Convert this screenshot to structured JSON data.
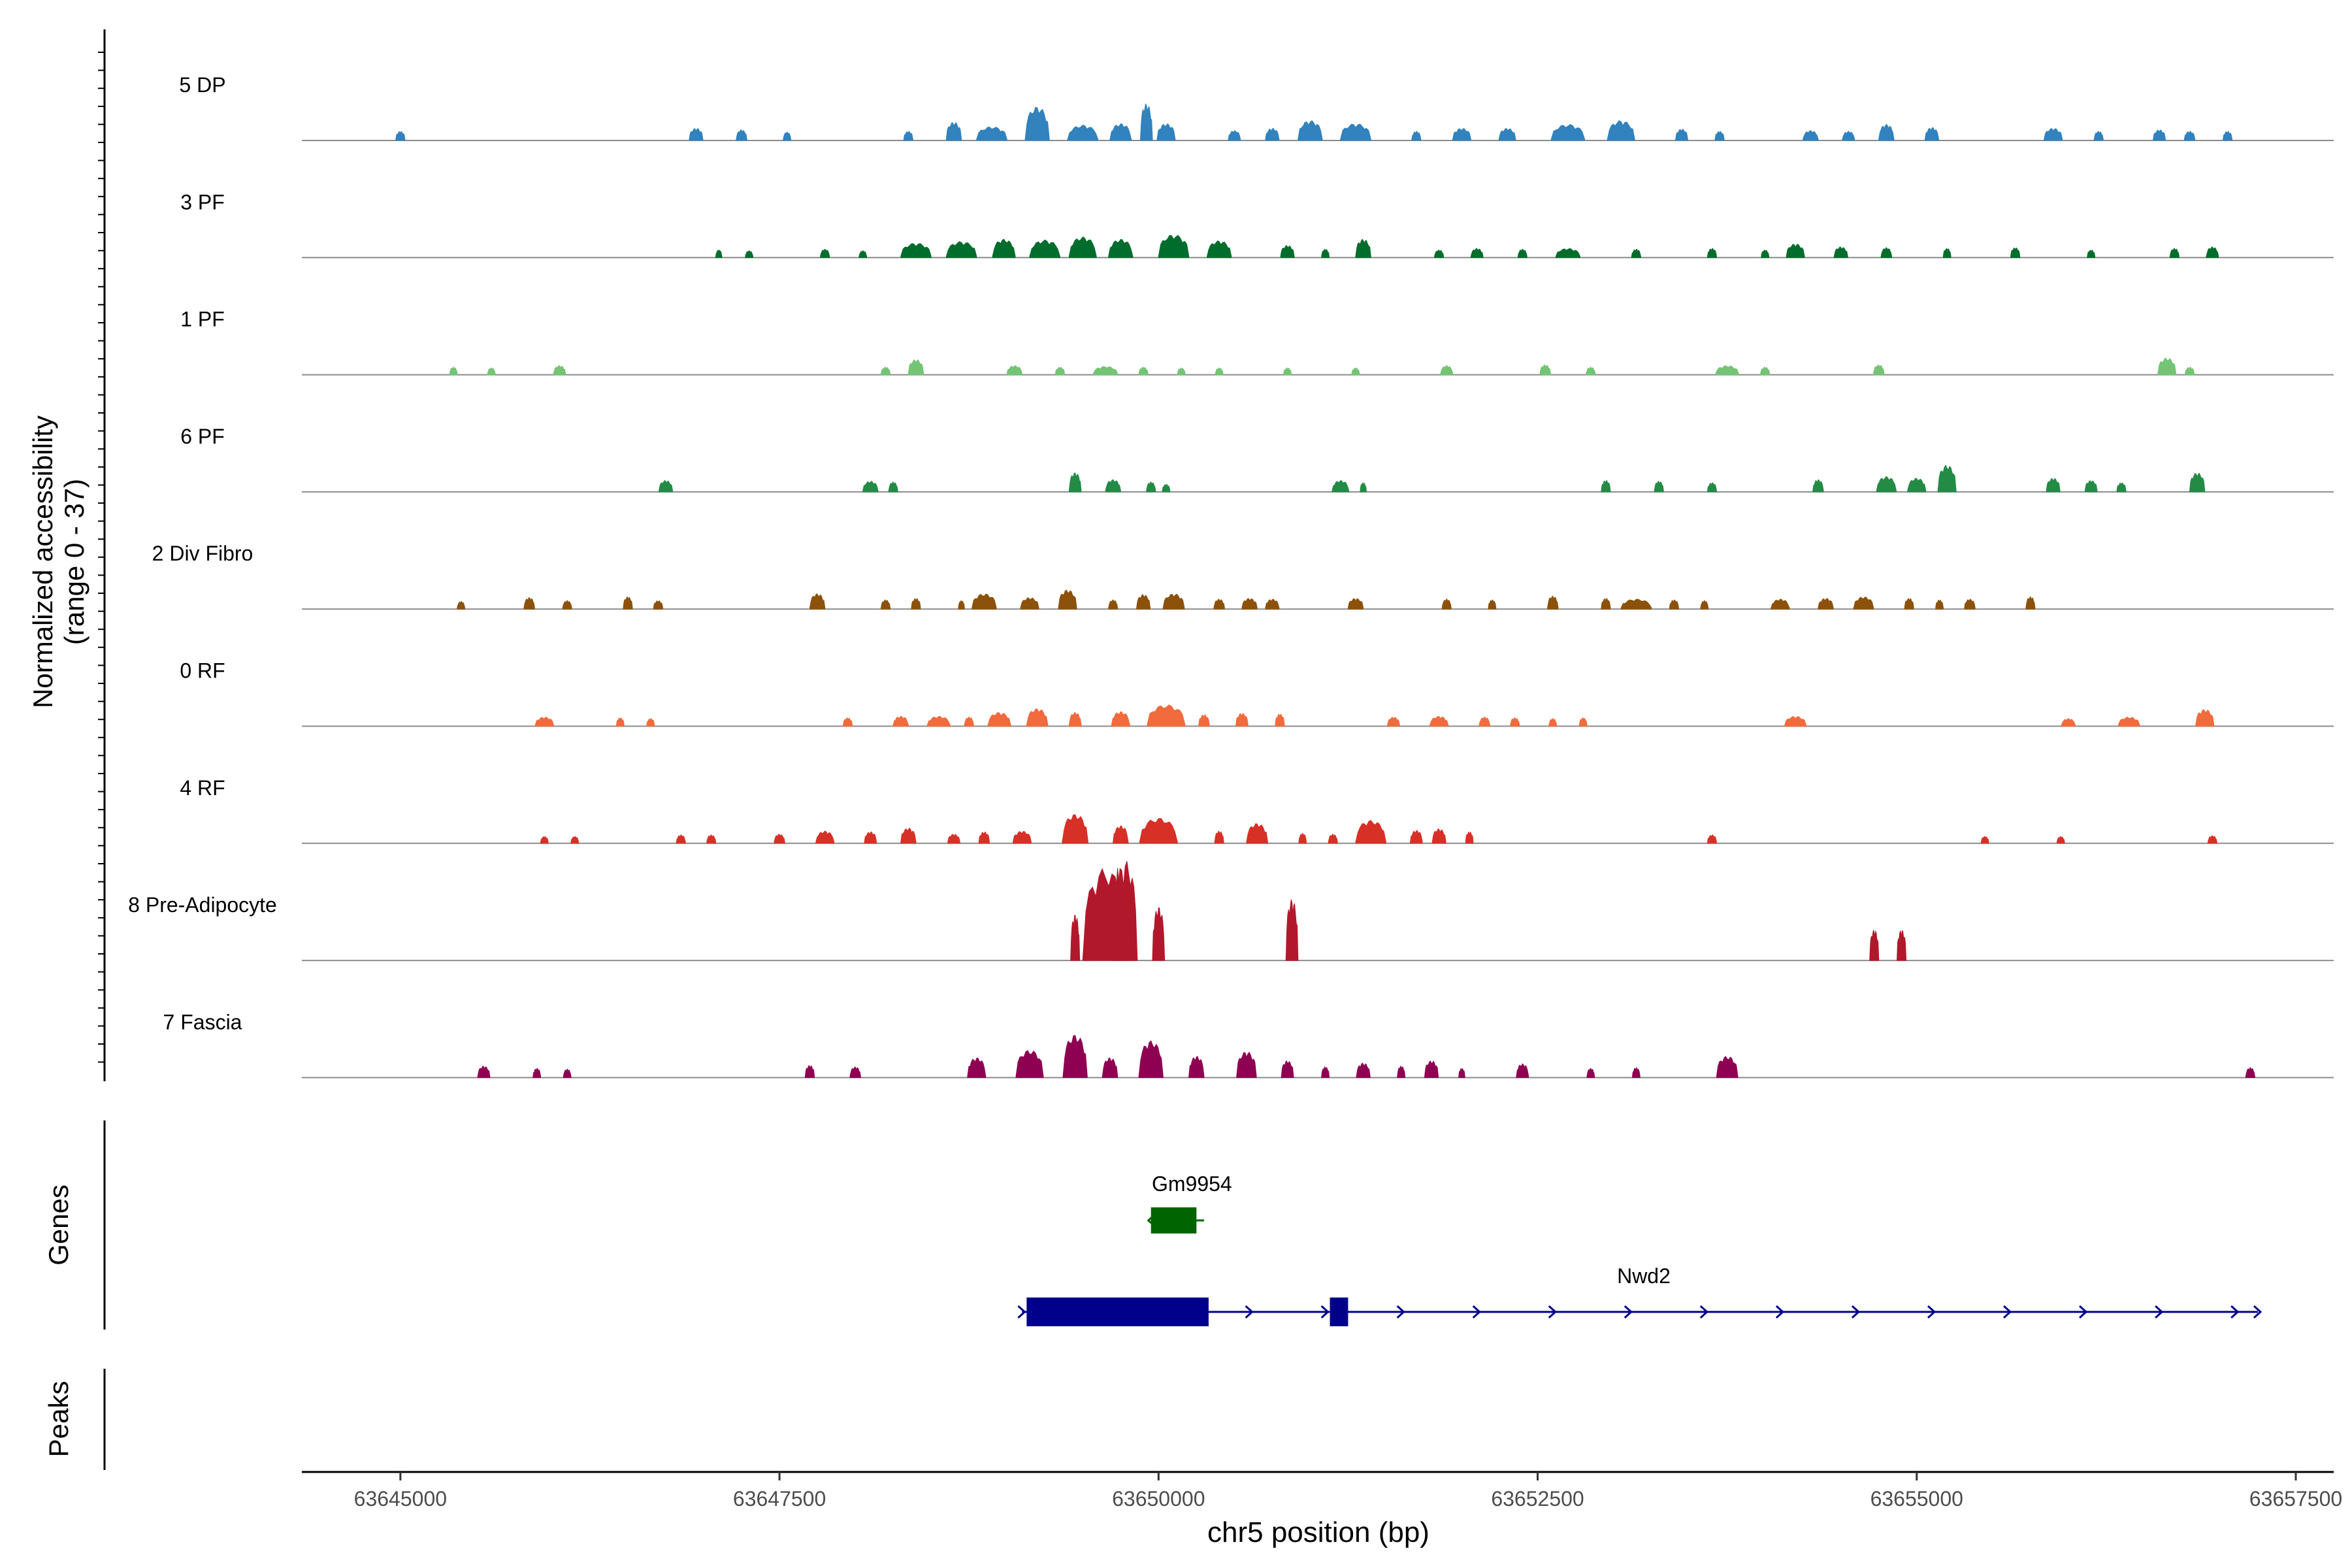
{
  "chart_data": {
    "type": "area",
    "title": "",
    "ylabel_lines": [
      "Normalized accessibility",
      "(range 0 - 37)"
    ],
    "xlabel": "chr5 position (bp)",
    "xlim": [
      63644350,
      63657750
    ],
    "x_ticks": [
      63645000,
      63647500,
      63650000,
      63652500,
      63655000,
      63657500
    ],
    "x_tick_labels": [
      "63645000",
      "63647500",
      "63650000",
      "63652500",
      "63655000",
      "63657500"
    ],
    "y_range": [
      0,
      37
    ],
    "tracks": [
      {
        "name": "5 DP",
        "color": "#3182bd",
        "peaks": [
          [
            63645000,
            60,
            1.2
          ],
          [
            63646950,
            90,
            1.6
          ],
          [
            63647250,
            70,
            1.4
          ],
          [
            63647550,
            50,
            1.1
          ],
          [
            63648350,
            60,
            1.2
          ],
          [
            63648650,
            100,
            2.4
          ],
          [
            63648900,
            200,
            1.8
          ],
          [
            63649200,
            160,
            4.4
          ],
          [
            63649500,
            200,
            2.0
          ],
          [
            63649750,
            140,
            2.2
          ],
          [
            63649920,
            80,
            4.8
          ],
          [
            63650050,
            120,
            2.2
          ],
          [
            63650500,
            80,
            1.3
          ],
          [
            63650750,
            90,
            1.6
          ],
          [
            63651000,
            160,
            2.6
          ],
          [
            63651300,
            200,
            2.2
          ],
          [
            63651700,
            60,
            1.2
          ],
          [
            63652000,
            120,
            1.6
          ],
          [
            63652300,
            110,
            1.6
          ],
          [
            63652700,
            220,
            2.1
          ],
          [
            63653050,
            180,
            2.6
          ],
          [
            63653450,
            80,
            1.5
          ],
          [
            63653700,
            60,
            1.2
          ],
          [
            63654300,
            100,
            1.3
          ],
          [
            63654550,
            80,
            1.2
          ],
          [
            63654800,
            100,
            2.1
          ],
          [
            63655100,
            90,
            1.7
          ],
          [
            63655900,
            120,
            1.6
          ],
          [
            63656200,
            60,
            1.2
          ],
          [
            63656600,
            80,
            1.4
          ],
          [
            63656800,
            70,
            1.2
          ],
          [
            63657050,
            60,
            1.2
          ]
        ]
      },
      {
        "name": "3 PF",
        "color": "#006d2c",
        "peaks": [
          [
            63647100,
            40,
            1.0
          ],
          [
            63647300,
            50,
            0.9
          ],
          [
            63647800,
            60,
            1.1
          ],
          [
            63648050,
            50,
            0.9
          ],
          [
            63648400,
            200,
            1.9
          ],
          [
            63648700,
            200,
            2.1
          ],
          [
            63648980,
            150,
            2.4
          ],
          [
            63649250,
            200,
            2.3
          ],
          [
            63649500,
            180,
            2.7
          ],
          [
            63649750,
            160,
            2.4
          ],
          [
            63650100,
            200,
            3.0
          ],
          [
            63650400,
            160,
            2.2
          ],
          [
            63650850,
            90,
            1.6
          ],
          [
            63651100,
            50,
            1.1
          ],
          [
            63651350,
            100,
            2.4
          ],
          [
            63651850,
            60,
            1.0
          ],
          [
            63652100,
            80,
            1.2
          ],
          [
            63652400,
            60,
            1.1
          ],
          [
            63652700,
            160,
            1.2
          ],
          [
            63653150,
            60,
            1.1
          ],
          [
            63653650,
            60,
            1.2
          ],
          [
            63654000,
            50,
            1.0
          ],
          [
            63654200,
            120,
            1.8
          ],
          [
            63654500,
            90,
            1.4
          ],
          [
            63654800,
            70,
            1.3
          ],
          [
            63655200,
            50,
            1.2
          ],
          [
            63655650,
            60,
            1.3
          ],
          [
            63656150,
            50,
            1.0
          ],
          [
            63656700,
            60,
            1.2
          ],
          [
            63656950,
            80,
            1.4
          ]
        ]
      },
      {
        "name": "1 PF",
        "color": "#74c476",
        "peaks": [
          [
            63645350,
            50,
            1.0
          ],
          [
            63645600,
            50,
            0.9
          ],
          [
            63646050,
            80,
            1.2
          ],
          [
            63648200,
            60,
            1.0
          ],
          [
            63648400,
            100,
            2.0
          ],
          [
            63649050,
            100,
            1.2
          ],
          [
            63649350,
            60,
            1.0
          ],
          [
            63649650,
            160,
            1.1
          ],
          [
            63649900,
            60,
            1.0
          ],
          [
            63650150,
            50,
            0.9
          ],
          [
            63650400,
            50,
            0.9
          ],
          [
            63650850,
            50,
            0.9
          ],
          [
            63651300,
            50,
            0.9
          ],
          [
            63651900,
            80,
            1.2
          ],
          [
            63652550,
            70,
            1.3
          ],
          [
            63652850,
            60,
            1.0
          ],
          [
            63653750,
            150,
            1.2
          ],
          [
            63654000,
            60,
            1.0
          ],
          [
            63654750,
            70,
            1.3
          ],
          [
            63656650,
            120,
            2.2
          ],
          [
            63656800,
            60,
            1.0
          ]
        ]
      },
      {
        "name": "6 PF",
        "color": "#238b45",
        "peaks": [
          [
            63646750,
            90,
            1.5
          ],
          [
            63648100,
            100,
            1.4
          ],
          [
            63648250,
            60,
            1.3
          ],
          [
            63649450,
            80,
            2.5
          ],
          [
            63649700,
            100,
            1.6
          ],
          [
            63649950,
            60,
            1.3
          ],
          [
            63650050,
            50,
            1.0
          ],
          [
            63651200,
            110,
            1.5
          ],
          [
            63651350,
            40,
            1.2
          ],
          [
            63652950,
            60,
            1.5
          ],
          [
            63653300,
            60,
            1.4
          ],
          [
            63653650,
            60,
            1.2
          ],
          [
            63654350,
            70,
            1.6
          ],
          [
            63654800,
            130,
            2.0
          ],
          [
            63655000,
            120,
            1.8
          ],
          [
            63655200,
            120,
            3.5
          ],
          [
            63655900,
            90,
            1.8
          ],
          [
            63656150,
            80,
            1.5
          ],
          [
            63656350,
            60,
            1.2
          ],
          [
            63656850,
            100,
            2.5
          ]
        ]
      },
      {
        "name": "2 Div Fibro",
        "color": "#8c510a",
        "peaks": [
          [
            63645400,
            50,
            1.0
          ],
          [
            63645850,
            70,
            1.5
          ],
          [
            63646100,
            60,
            1.1
          ],
          [
            63646500,
            60,
            1.6
          ],
          [
            63646700,
            60,
            1.1
          ],
          [
            63647750,
            100,
            2.0
          ],
          [
            63648200,
            60,
            1.2
          ],
          [
            63648400,
            60,
            1.4
          ],
          [
            63648700,
            40,
            1.1
          ],
          [
            63648850,
            160,
            2.0
          ],
          [
            63649150,
            120,
            1.5
          ],
          [
            63649400,
            120,
            2.5
          ],
          [
            63649700,
            60,
            1.2
          ],
          [
            63649900,
            90,
            1.9
          ],
          [
            63650100,
            140,
            2.0
          ],
          [
            63650400,
            70,
            1.3
          ],
          [
            63650600,
            100,
            1.4
          ],
          [
            63650750,
            90,
            1.3
          ],
          [
            63651300,
            100,
            1.4
          ],
          [
            63651900,
            60,
            1.3
          ],
          [
            63652200,
            50,
            1.2
          ],
          [
            63652600,
            70,
            1.7
          ],
          [
            63652950,
            60,
            1.4
          ],
          [
            63653150,
            200,
            1.3
          ],
          [
            63653400,
            60,
            1.2
          ],
          [
            63653600,
            50,
            1.1
          ],
          [
            63654100,
            120,
            1.3
          ],
          [
            63654400,
            100,
            1.4
          ],
          [
            63654650,
            130,
            1.6
          ],
          [
            63654950,
            60,
            1.4
          ],
          [
            63655150,
            50,
            1.2
          ],
          [
            63655350,
            70,
            1.3
          ],
          [
            63655750,
            60,
            1.6
          ]
        ]
      },
      {
        "name": "0 RF",
        "color": "#f16b3c",
        "peaks": [
          [
            63645950,
            120,
            1.2
          ],
          [
            63646450,
            50,
            1.1
          ],
          [
            63646650,
            50,
            1.0
          ],
          [
            63647950,
            60,
            1.1
          ],
          [
            63648300,
            100,
            1.3
          ],
          [
            63648550,
            150,
            1.3
          ],
          [
            63648750,
            60,
            1.2
          ],
          [
            63648950,
            150,
            1.8
          ],
          [
            63649200,
            140,
            2.3
          ],
          [
            63649450,
            80,
            1.8
          ],
          [
            63649750,
            120,
            1.9
          ],
          [
            63650050,
            250,
            2.8
          ],
          [
            63650300,
            70,
            1.5
          ],
          [
            63650550,
            80,
            1.7
          ],
          [
            63650800,
            60,
            1.6
          ],
          [
            63651550,
            80,
            1.2
          ],
          [
            63651850,
            120,
            1.3
          ],
          [
            63652150,
            70,
            1.2
          ],
          [
            63652350,
            60,
            1.1
          ],
          [
            63652600,
            50,
            1.0
          ],
          [
            63652800,
            50,
            1.1
          ],
          [
            63654200,
            140,
            1.3
          ],
          [
            63656000,
            90,
            1.0
          ],
          [
            63656400,
            140,
            1.2
          ],
          [
            63656900,
            120,
            2.2
          ]
        ]
      },
      {
        "name": "4 RF",
        "color": "#d73027",
        "peaks": [
          [
            63645950,
            50,
            0.9
          ],
          [
            63646150,
            50,
            0.9
          ],
          [
            63646850,
            60,
            1.1
          ],
          [
            63647050,
            60,
            1.1
          ],
          [
            63647500,
            70,
            1.2
          ],
          [
            63647800,
            120,
            1.6
          ],
          [
            63648100,
            80,
            1.5
          ],
          [
            63648350,
            100,
            2.0
          ],
          [
            63648650,
            80,
            1.2
          ],
          [
            63648850,
            70,
            1.5
          ],
          [
            63649100,
            120,
            1.6
          ],
          [
            63649450,
            170,
            3.8
          ],
          [
            63649750,
            100,
            2.3
          ],
          [
            63650000,
            250,
            3.3
          ],
          [
            63650400,
            60,
            1.6
          ],
          [
            63650650,
            140,
            2.6
          ],
          [
            63650950,
            50,
            1.3
          ],
          [
            63651150,
            60,
            1.2
          ],
          [
            63651400,
            200,
            3.0
          ],
          [
            63651700,
            80,
            1.7
          ],
          [
            63651850,
            90,
            1.9
          ],
          [
            63652050,
            50,
            1.5
          ],
          [
            63653650,
            60,
            1.1
          ],
          [
            63655450,
            50,
            0.9
          ],
          [
            63655950,
            50,
            0.9
          ],
          [
            63656950,
            60,
            1.0
          ]
        ]
      },
      {
        "name": "8 Pre-Adipocyte",
        "color": "#b2182b",
        "peaks": [
          [
            63649650,
            300,
            12
          ],
          [
            63649780,
            160,
            13
          ],
          [
            63649730,
            60,
            12
          ],
          [
            63649820,
            50,
            8
          ],
          [
            63649530,
            40,
            7
          ],
          [
            63649450,
            60,
            6
          ],
          [
            63650000,
            80,
            7
          ],
          [
            63650880,
            80,
            8
          ],
          [
            63654720,
            60,
            4
          ],
          [
            63654900,
            60,
            4
          ]
        ]
      },
      {
        "name": "7 Fascia",
        "color": "#8e0152",
        "peaks": [
          [
            63645550,
            80,
            1.5
          ],
          [
            63645900,
            50,
            1.2
          ],
          [
            63646100,
            50,
            1.1
          ],
          [
            63647700,
            60,
            1.6
          ],
          [
            63648000,
            70,
            1.4
          ],
          [
            63648800,
            120,
            2.6
          ],
          [
            63649150,
            180,
            3.6
          ],
          [
            63649450,
            160,
            5.6
          ],
          [
            63649680,
            100,
            2.6
          ],
          [
            63649950,
            160,
            4.8
          ],
          [
            63650250,
            100,
            2.8
          ],
          [
            63650580,
            130,
            3.4
          ],
          [
            63650850,
            80,
            2.2
          ],
          [
            63651100,
            50,
            1.4
          ],
          [
            63651350,
            90,
            1.9
          ],
          [
            63651600,
            50,
            1.5
          ],
          [
            63651800,
            90,
            2.2
          ],
          [
            63652000,
            40,
            1.2
          ],
          [
            63652400,
            80,
            1.8
          ],
          [
            63652850,
            50,
            1.2
          ],
          [
            63653150,
            50,
            1.3
          ],
          [
            63653750,
            140,
            2.8
          ],
          [
            63657200,
            60,
            1.3
          ]
        ]
      }
    ],
    "genes_label": "Genes",
    "peaks_label": "Peaks",
    "genes": [
      {
        "name": "Gm9954",
        "color": "#006400",
        "start": 63649950,
        "end": 63650300,
        "strand": "-",
        "row": 1,
        "label_x": 63650220,
        "exons": [
          [
            63649950,
            63650250
          ]
        ]
      },
      {
        "name": "Nwd2",
        "color": "#00008b",
        "start": 63649100,
        "end": 63657250,
        "strand": "+",
        "row": 2,
        "label_x": 63653200,
        "exons": [
          [
            63649130,
            63650330
          ],
          [
            63651130,
            63651250
          ]
        ]
      }
    ]
  }
}
